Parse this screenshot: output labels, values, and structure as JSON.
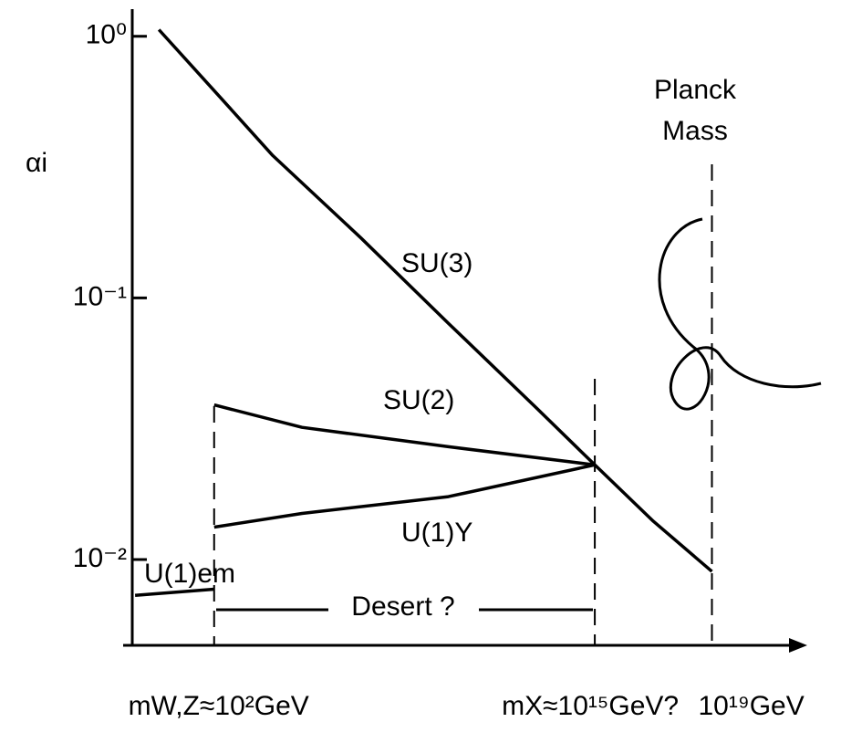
{
  "chart_data": {
    "type": "line",
    "y_label": "αi",
    "xlog": true,
    "ylog": true,
    "xlim": [
      0.16,
      1.8e+22
    ],
    "ylim": [
      0.0047,
      1.27
    ],
    "yticks": [
      {
        "value": 1,
        "label": "10⁰"
      },
      {
        "value": 0.1,
        "label": "10⁻¹"
      },
      {
        "value": 0.01,
        "label": "10⁻²"
      }
    ],
    "xticks": [
      {
        "value": 100,
        "label": "mW,Z≈10²GeV"
      },
      {
        "value": 1000000000000000.0,
        "label": "mX≈10¹⁵GeV?"
      },
      {
        "value": 1e+19,
        "label": "10¹⁹GeV"
      }
    ],
    "series": [
      {
        "name": "SU(3)",
        "color": "#000000",
        "x": [
          1.3,
          100,
          10000,
          10000000.0,
          10000000000.0,
          10000000000000.0,
          1000000000000000.0,
          1e+17,
          1e+19
        ],
        "values": [
          1.06,
          0.62,
          0.35,
          0.17,
          0.08,
          0.038,
          0.023,
          0.014,
          0.009
        ]
      },
      {
        "name": "SU(2)",
        "color": "#000000",
        "x": [
          100,
          100000,
          10000000000.0,
          1000000000000000.0
        ],
        "values": [
          0.039,
          0.032,
          0.027,
          0.023
        ]
      },
      {
        "name": "U(1)Y",
        "color": "#000000",
        "x": [
          100,
          100000,
          10000000000.0,
          1000000000000000.0
        ],
        "values": [
          0.0133,
          0.015,
          0.0174,
          0.023
        ]
      },
      {
        "name": "U(1)em",
        "color": "#000000",
        "x": [
          0.2,
          100
        ],
        "values": [
          0.0073,
          0.0077
        ]
      }
    ],
    "annotations": [
      "Desert ?",
      "Planck",
      "Mass"
    ]
  }
}
